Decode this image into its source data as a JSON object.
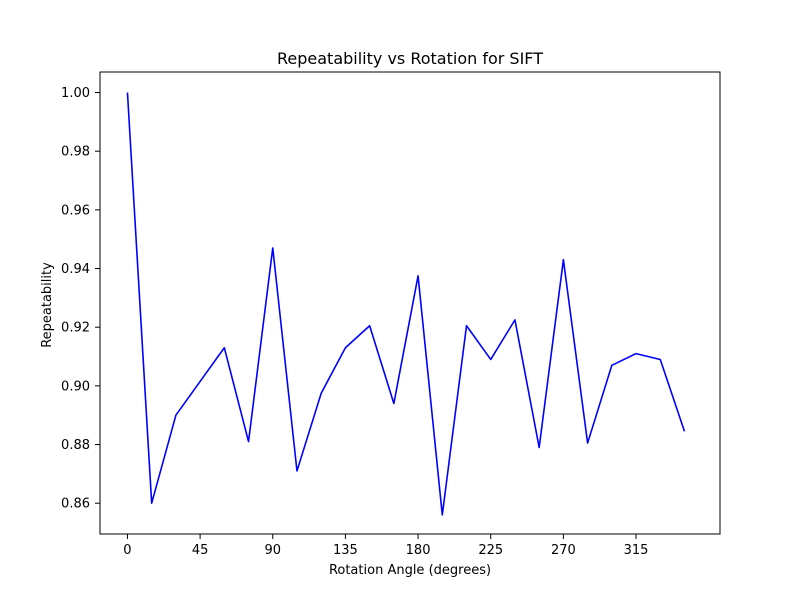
{
  "chart_data": {
    "type": "line",
    "title": "Repeatability vs Rotation for SIFT",
    "xlabel": "Rotation Angle (degrees)",
    "ylabel": "Repeatability",
    "xlim": [
      -17,
      367
    ],
    "ylim": [
      0.8495,
      1.007
    ],
    "x_ticks": [
      0,
      45,
      90,
      135,
      180,
      225,
      270,
      315
    ],
    "y_ticks": [
      0.86,
      0.88,
      0.9,
      0.92,
      0.94,
      0.96,
      0.98,
      1.0
    ],
    "y_tick_labels": [
      "0.86",
      "0.88",
      "0.90",
      "0.92",
      "0.94",
      "0.96",
      "0.98",
      "1.00"
    ],
    "grid": false,
    "series": [
      {
        "color": "#0000ff",
        "x": [
          0,
          15,
          30,
          45,
          60,
          75,
          90,
          105,
          120,
          135,
          150,
          165,
          180,
          195,
          210,
          225,
          240,
          255,
          270,
          285,
          300,
          315,
          330,
          345
        ],
        "y": [
          1.0,
          0.86,
          0.89,
          0.9015,
          0.913,
          0.881,
          0.947,
          0.871,
          0.8975,
          0.913,
          0.9205,
          0.894,
          0.9375,
          0.856,
          0.9205,
          0.909,
          0.9225,
          0.879,
          0.943,
          0.8805,
          0.907,
          0.911,
          0.909,
          0.8845
        ]
      }
    ]
  }
}
